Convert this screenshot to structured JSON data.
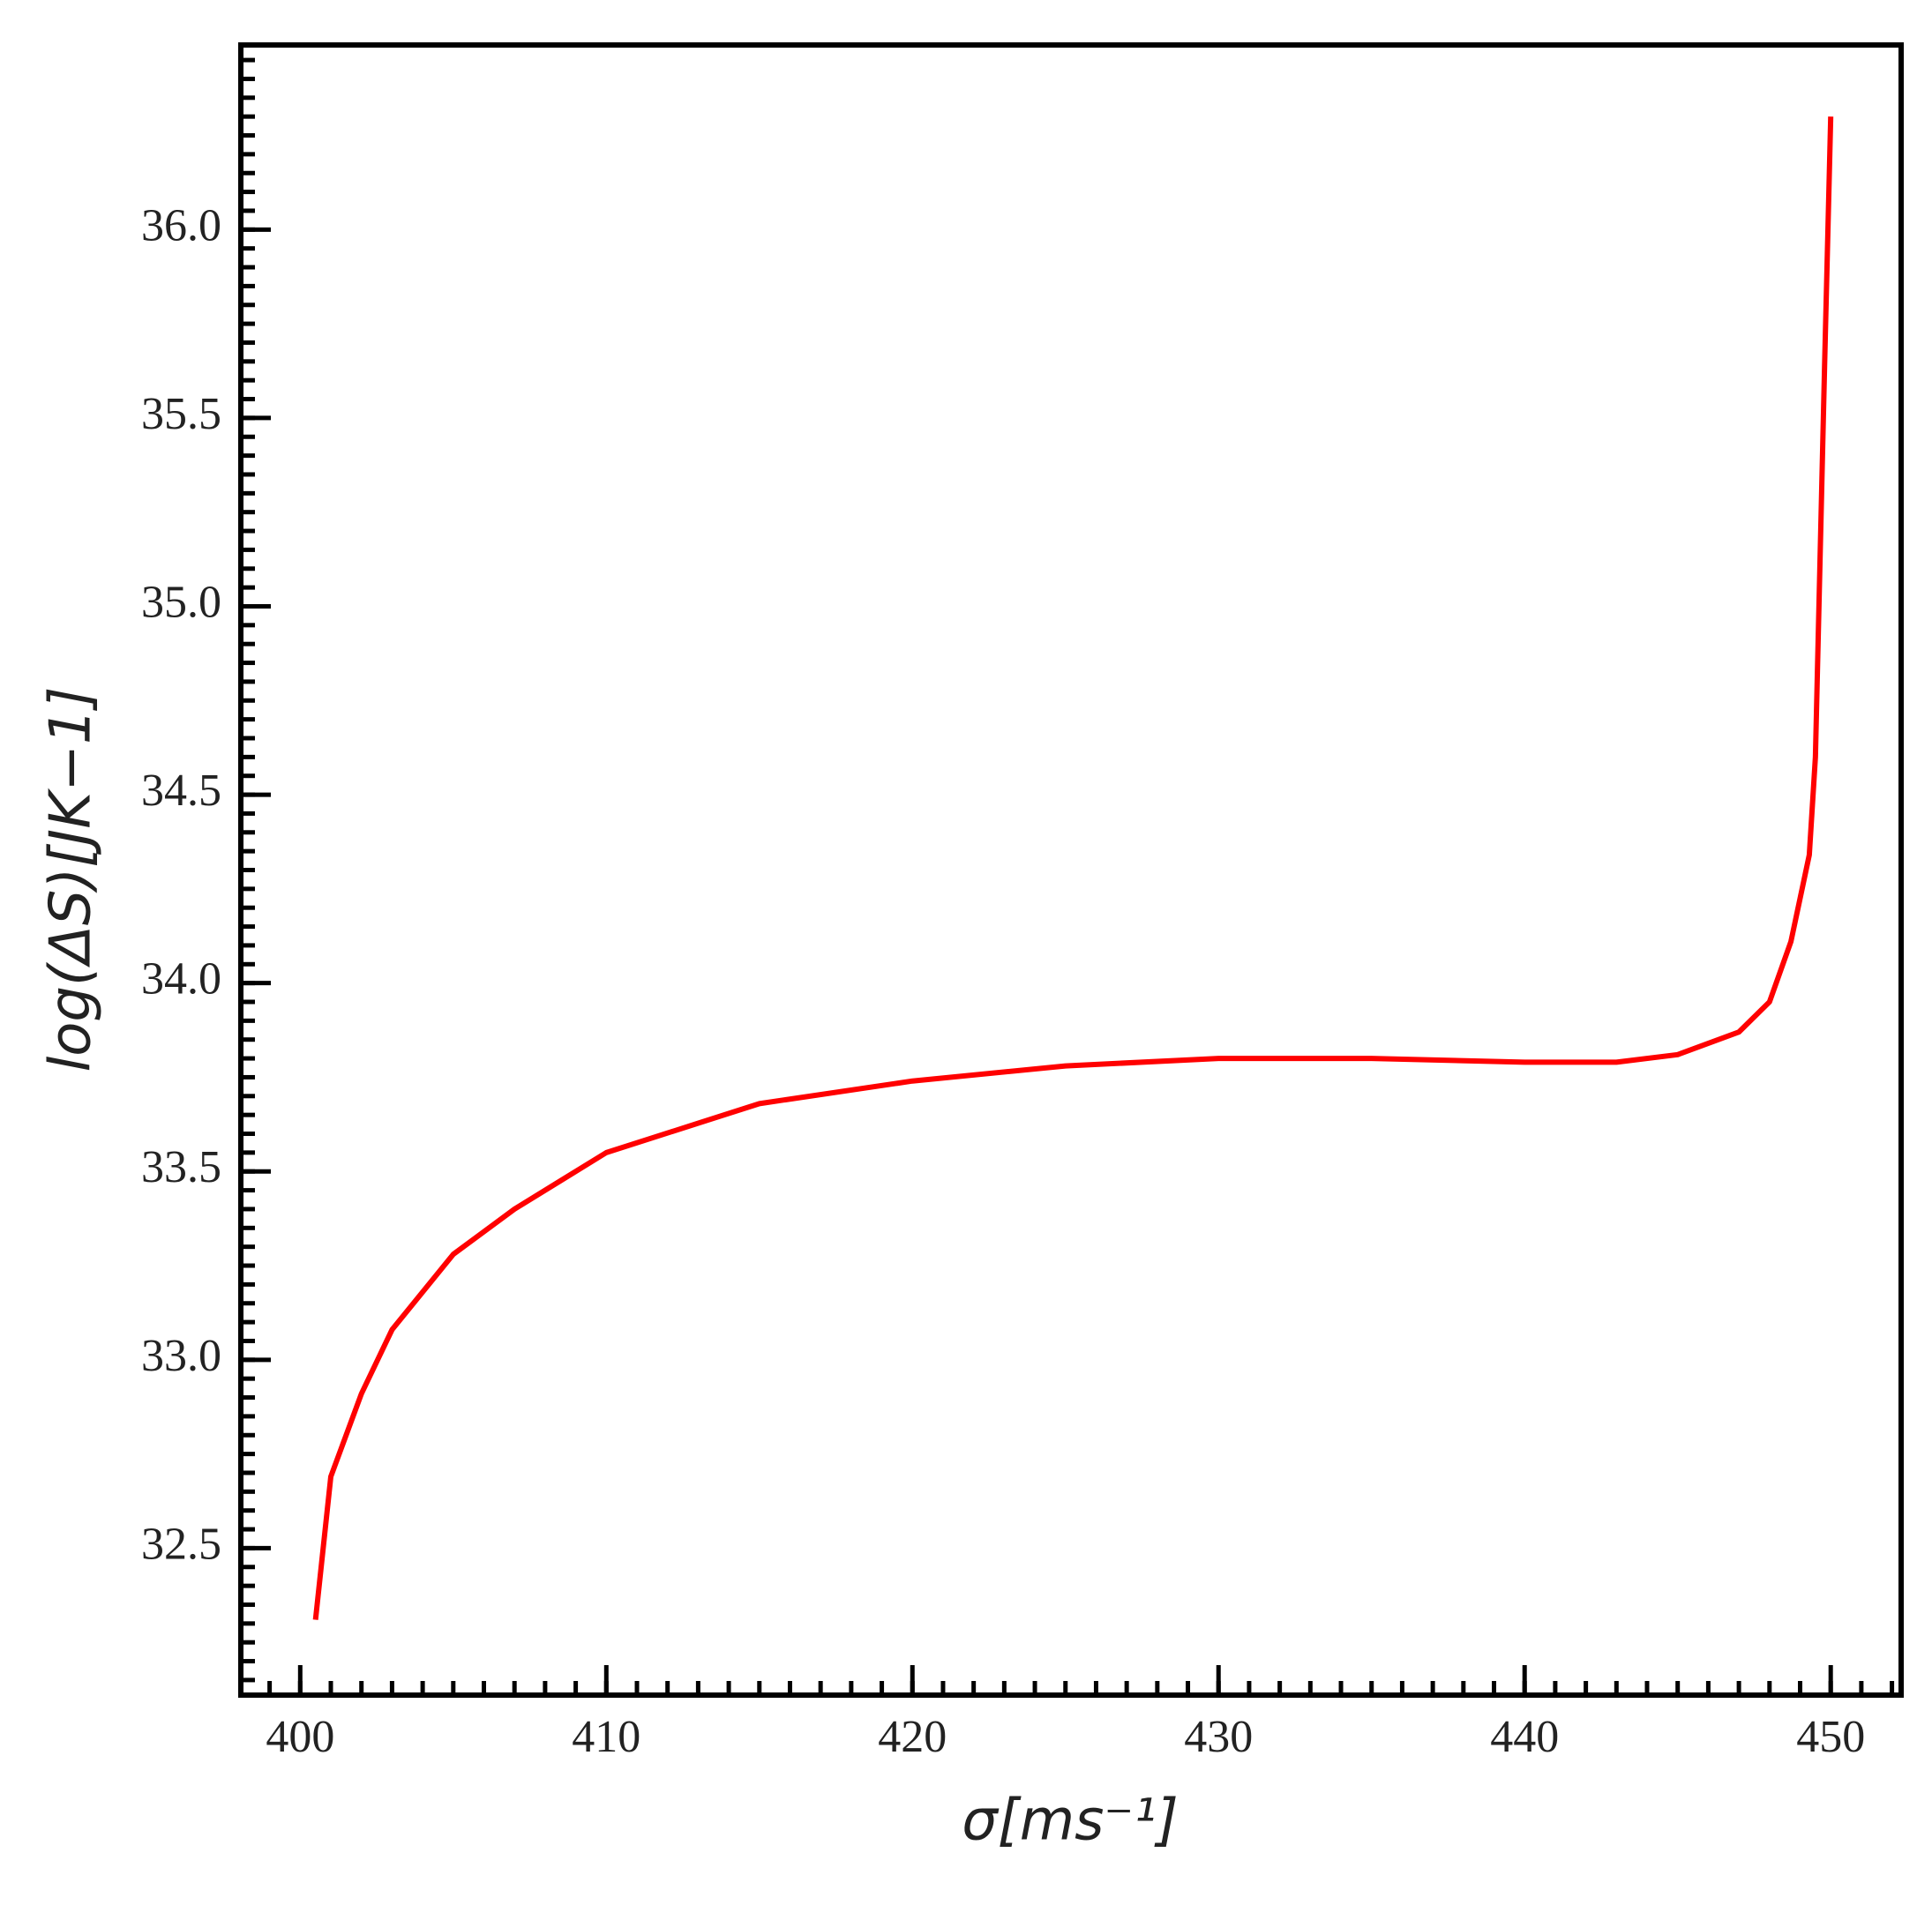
{
  "chart_data": {
    "type": "line",
    "x_label": "σ[ms⁻¹]",
    "y_label": "log(ΔS)[JK−1]",
    "x": [
      400.5,
      401,
      402,
      403,
      405,
      407,
      410,
      415,
      420,
      425,
      430,
      435,
      440,
      443,
      445,
      447,
      448,
      448.7,
      449.3,
      449.5,
      449.8,
      450
    ],
    "series": [
      {
        "color": "#ff0000",
        "values": [
          32.31,
          32.69,
          32.91,
          33.08,
          33.28,
          33.4,
          33.55,
          33.68,
          33.74,
          33.78,
          33.8,
          33.8,
          33.79,
          33.79,
          33.81,
          33.87,
          33.95,
          34.11,
          34.34,
          34.6,
          35.64,
          36.3
        ]
      }
    ],
    "xlim": [
      398.06,
      452.3
    ],
    "ylim": [
      32.11,
      36.49
    ],
    "xticks": [
      400,
      410,
      420,
      430,
      440,
      450
    ],
    "yticks": [
      32.5,
      {
        "value": 33,
        "label": "33.0"
      },
      33.5,
      {
        "value": 34,
        "label": "34.0"
      },
      34.5,
      {
        "value": 35,
        "label": "35.0"
      },
      35.5,
      {
        "value": 36,
        "label": "36.0"
      }
    ],
    "grid": false
  }
}
